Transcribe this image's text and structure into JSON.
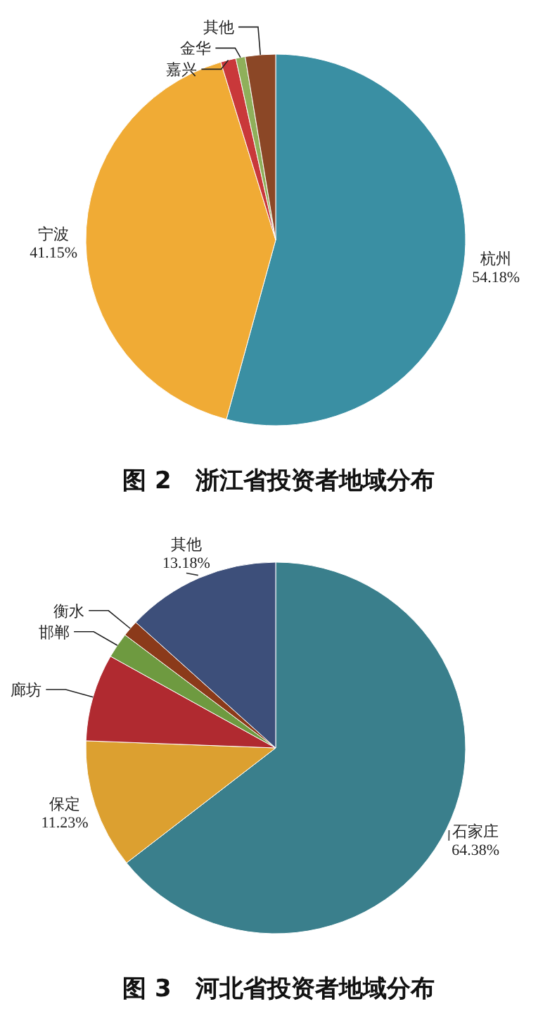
{
  "chart_data": [
    {
      "type": "pie",
      "title": "图 2　浙江省投资者地域分布",
      "categories": [
        "杭州",
        "宁波",
        "嘉兴",
        "金华",
        "其他"
      ],
      "values": [
        54.18,
        41.15,
        1.3,
        0.8,
        2.57
      ],
      "colors": [
        "#3a8fa3",
        "#f0ab35",
        "#c9383a",
        "#8fb05a",
        "#8b4726"
      ],
      "value_labels": [
        "54.18%",
        "41.15%",
        null,
        null,
        null
      ]
    },
    {
      "type": "pie",
      "title": "图 3　河北省投资者地域分布",
      "categories": [
        "石家庄",
        "保定",
        "廊坊",
        "邯郸",
        "衡水",
        "其他"
      ],
      "values": [
        64.38,
        11.23,
        7.6,
        2.2,
        1.41,
        13.18
      ],
      "colors": [
        "#3a7f8c",
        "#dca030",
        "#b02a30",
        "#6e9a40",
        "#8b3a1a",
        "#3d4f7a"
      ],
      "value_labels": [
        "64.38%",
        "11.23%",
        null,
        null,
        null,
        "13.18%"
      ]
    }
  ]
}
